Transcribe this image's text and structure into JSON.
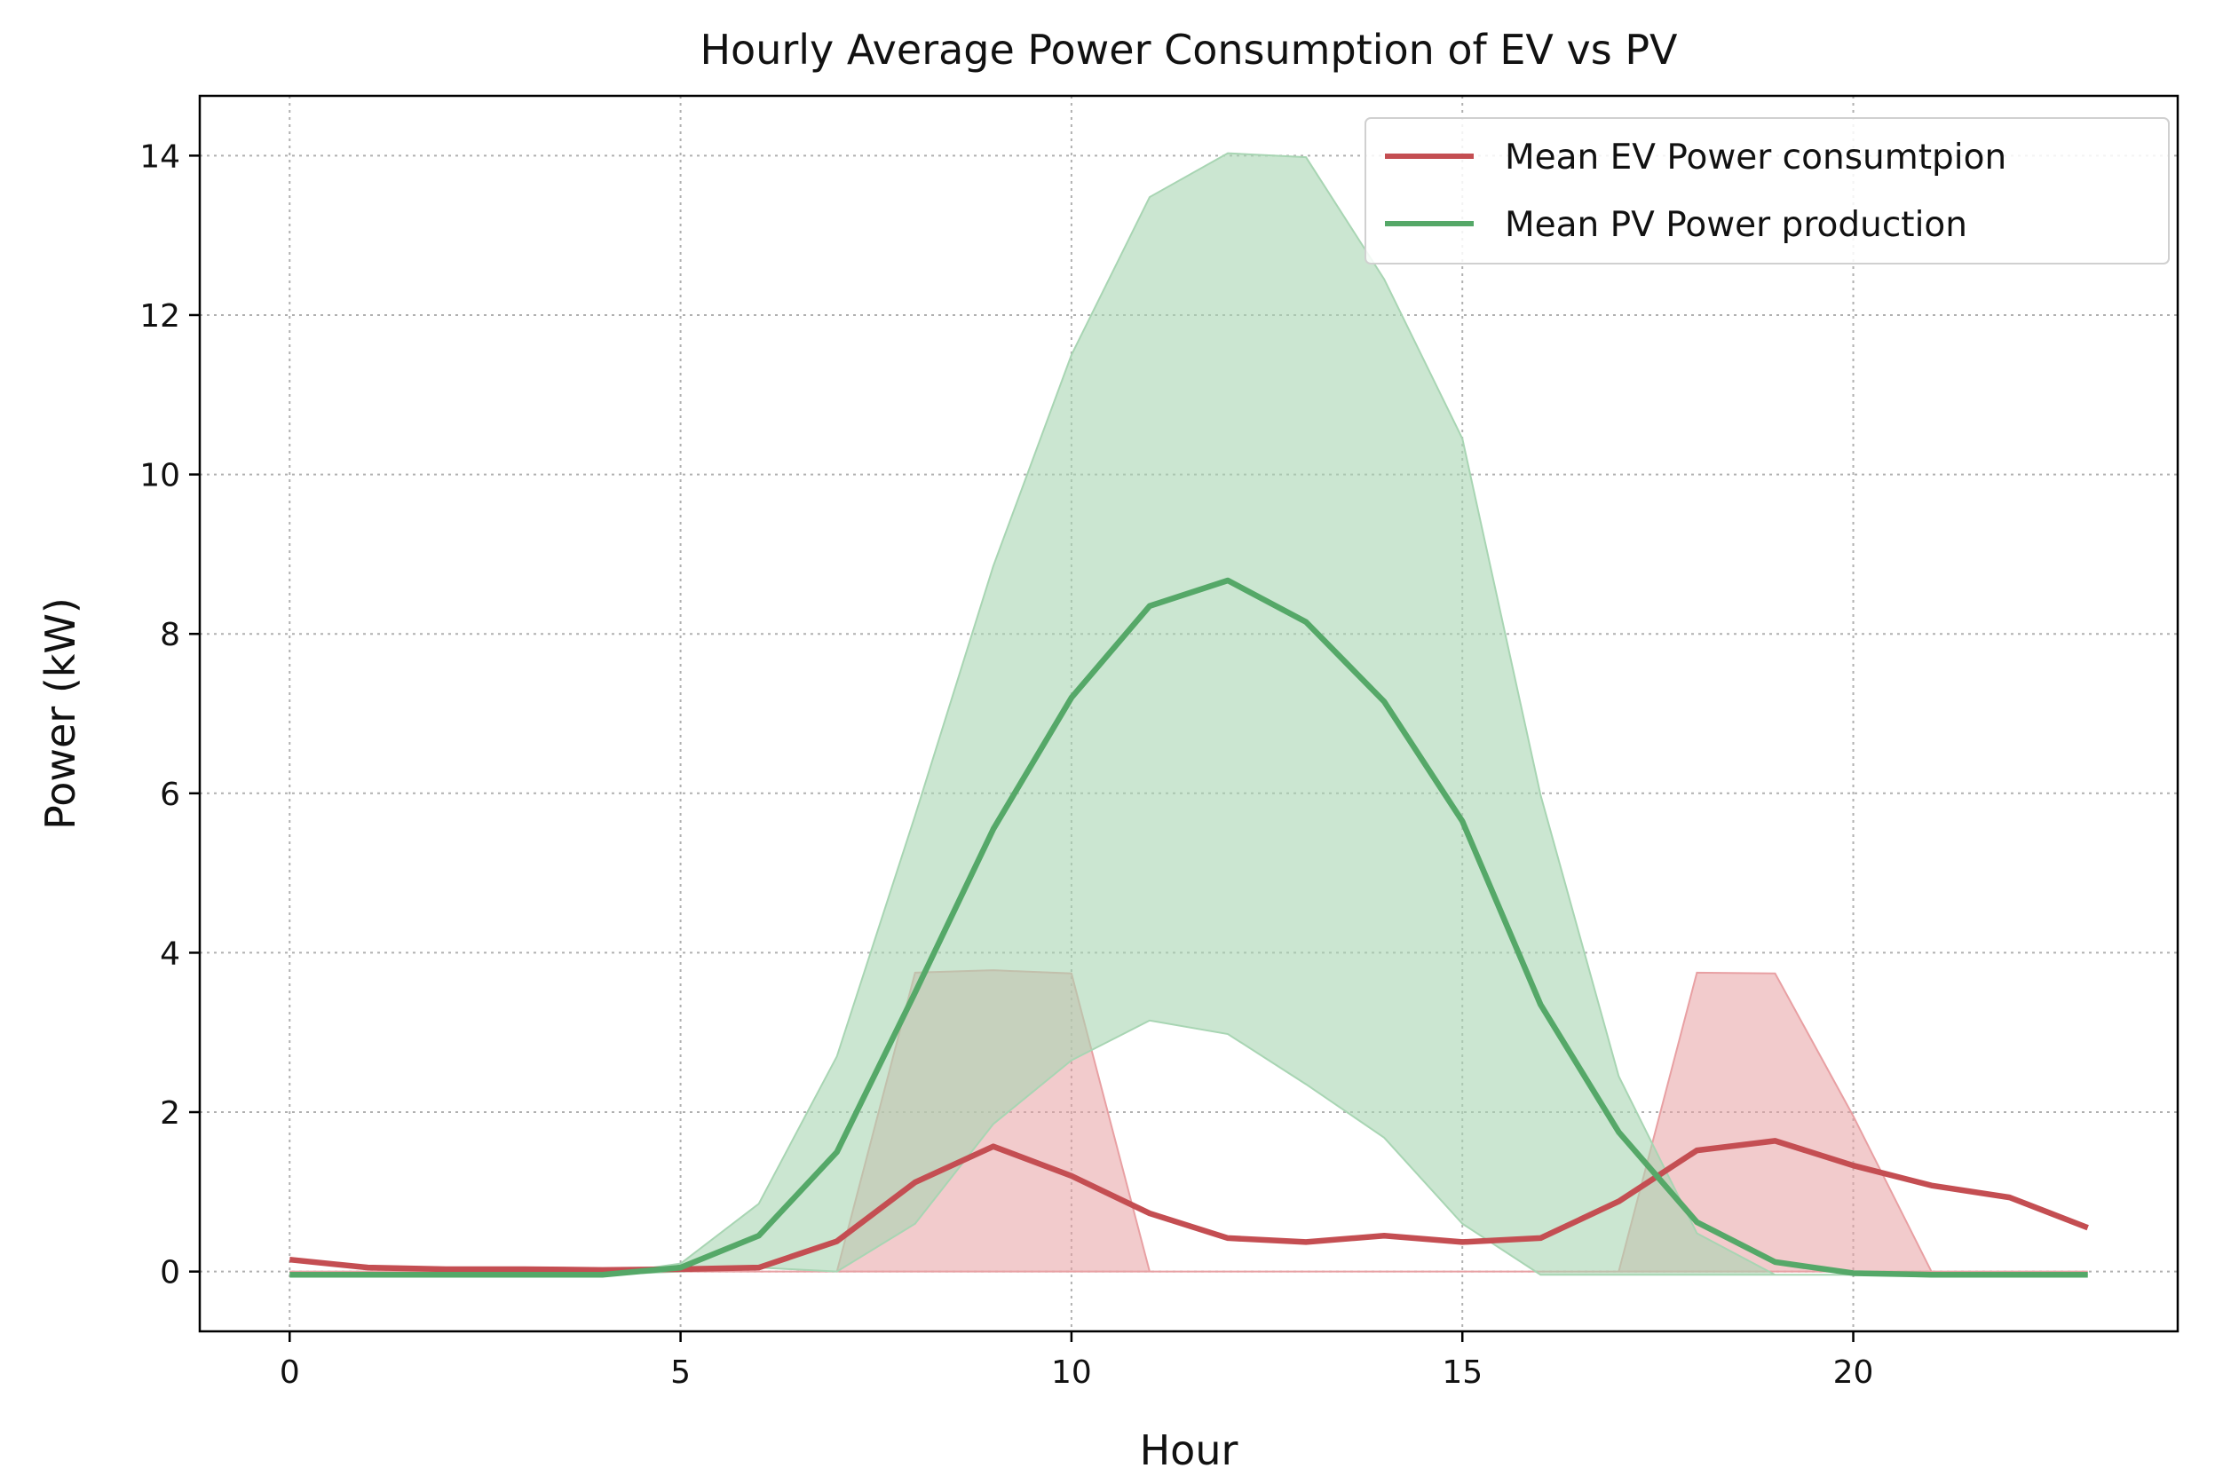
{
  "chart_data": {
    "type": "line",
    "title": "Hourly Average Power Consumption of EV vs PV",
    "xlabel": "Hour",
    "ylabel": "Power (kW)",
    "xlim": [
      -1.15,
      24.15
    ],
    "ylim": [
      -0.75,
      14.75
    ],
    "xticks": [
      0,
      5,
      10,
      15,
      20
    ],
    "yticks": [
      0,
      2,
      4,
      6,
      8,
      10,
      12,
      14
    ],
    "grid": true,
    "legend_position": "top-right",
    "x": [
      0,
      1,
      2,
      3,
      4,
      5,
      6,
      7,
      8,
      9,
      10,
      11,
      12,
      13,
      14,
      15,
      16,
      17,
      18,
      19,
      20,
      21,
      22,
      23
    ],
    "series": [
      {
        "name": "Mean EV Power consumtpion",
        "color": "#c44e52",
        "values": [
          0.15,
          0.05,
          0.03,
          0.03,
          0.02,
          0.03,
          0.05,
          0.38,
          1.12,
          1.57,
          1.2,
          0.73,
          0.42,
          0.37,
          0.45,
          0.37,
          0.42,
          0.88,
          1.52,
          1.64,
          1.33,
          1.08,
          0.93,
          0.55
        ],
        "band_lower": [
          0,
          0,
          0,
          0,
          0,
          0,
          0,
          0,
          0,
          0,
          0,
          0,
          0,
          0,
          0,
          0,
          0,
          0,
          0,
          0,
          0,
          0,
          0,
          0
        ],
        "band_upper": [
          0,
          0,
          0,
          0,
          0,
          0,
          0,
          0,
          3.75,
          3.78,
          3.74,
          0,
          0,
          0,
          0,
          0,
          0,
          0,
          3.75,
          3.74,
          1.95,
          0,
          0,
          0
        ],
        "band_color": "#e8a0a3"
      },
      {
        "name": "Mean PV Power production",
        "color": "#55a868",
        "values": [
          -0.04,
          -0.04,
          -0.04,
          -0.04,
          -0.04,
          0.05,
          0.45,
          1.5,
          3.5,
          5.55,
          7.2,
          8.35,
          8.67,
          8.15,
          7.15,
          5.65,
          3.35,
          1.75,
          0.62,
          0.12,
          -0.02,
          -0.04,
          -0.04,
          -0.04
        ],
        "band_lower": [
          -0.04,
          -0.04,
          -0.04,
          -0.04,
          -0.04,
          0.0,
          0.05,
          0.0,
          0.6,
          1.85,
          2.65,
          3.15,
          2.98,
          2.35,
          1.68,
          0.6,
          -0.04,
          -0.04,
          -0.04,
          -0.04,
          -0.04,
          -0.04,
          -0.04,
          -0.04
        ],
        "band_upper": [
          -0.04,
          -0.04,
          -0.04,
          -0.04,
          -0.04,
          0.1,
          0.85,
          2.7,
          5.72,
          8.85,
          11.5,
          13.48,
          14.03,
          13.98,
          12.45,
          10.45,
          5.98,
          2.45,
          0.48,
          -0.04,
          -0.04,
          -0.04,
          -0.04,
          -0.04
        ],
        "band_color": "#a8d5b3"
      }
    ]
  }
}
